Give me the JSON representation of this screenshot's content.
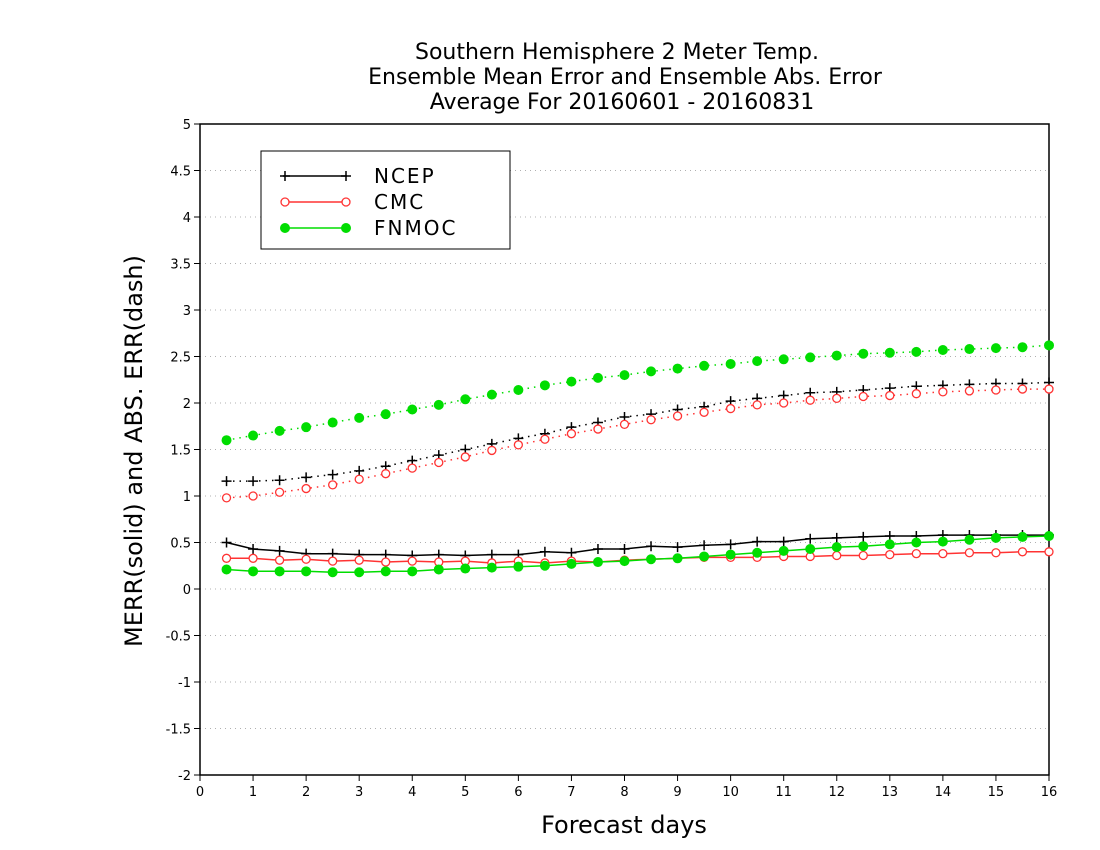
{
  "chart_data": {
    "type": "line",
    "title_lines": [
      "Southern Hemisphere 2 Meter Temp.",
      "Ensemble Mean Error and Ensemble Abs. Error",
      "Average For 20160601 - 20160831"
    ],
    "xlabel": "Forecast days",
    "ylabel": "MERR(solid) and ABS. ERR(dash)",
    "xlim": [
      0,
      16
    ],
    "ylim": [
      -2,
      5
    ],
    "x_ticks": [
      "0",
      "1",
      "2",
      "3",
      "4",
      "5",
      "6",
      "7",
      "8",
      "9",
      "10",
      "11",
      "12",
      "13",
      "14",
      "15",
      "16"
    ],
    "y_ticks": [
      "5",
      "4.5",
      "4",
      "3.5",
      "3",
      "2.5",
      "2",
      "1.5",
      "1",
      "0.5",
      "0",
      "-0.5",
      "-1",
      "-1.5",
      "-2"
    ],
    "grid": true,
    "legend_position": "top-left",
    "x": [
      0.5,
      1,
      1.5,
      2,
      2.5,
      3,
      3.5,
      4,
      4.5,
      5,
      5.5,
      6,
      6.5,
      7,
      7.5,
      8,
      8.5,
      9,
      9.5,
      10,
      10.5,
      11,
      11.5,
      12,
      12.5,
      13,
      13.5,
      14,
      14.5,
      15,
      15.5,
      16
    ],
    "series": [
      {
        "name": "NCEP",
        "color": "#000000",
        "marker": "plus",
        "mean_error": [
          0.5,
          0.43,
          0.41,
          0.38,
          0.38,
          0.37,
          0.37,
          0.36,
          0.37,
          0.36,
          0.37,
          0.37,
          0.4,
          0.39,
          0.43,
          0.43,
          0.46,
          0.45,
          0.47,
          0.48,
          0.51,
          0.51,
          0.54,
          0.55,
          0.56,
          0.57,
          0.57,
          0.58,
          0.58,
          0.58,
          0.58,
          0.58
        ],
        "abs_error": [
          1.16,
          1.16,
          1.17,
          1.2,
          1.23,
          1.27,
          1.32,
          1.38,
          1.44,
          1.5,
          1.56,
          1.62,
          1.67,
          1.74,
          1.79,
          1.85,
          1.88,
          1.93,
          1.96,
          2.02,
          2.05,
          2.08,
          2.11,
          2.12,
          2.14,
          2.16,
          2.18,
          2.19,
          2.2,
          2.21,
          2.21,
          2.22
        ]
      },
      {
        "name": "CMC",
        "color": "#ff3333",
        "marker": "open-circle",
        "mean_error": [
          0.33,
          0.33,
          0.31,
          0.32,
          0.3,
          0.31,
          0.29,
          0.3,
          0.29,
          0.3,
          0.28,
          0.3,
          0.28,
          0.3,
          0.29,
          0.31,
          0.32,
          0.33,
          0.34,
          0.34,
          0.34,
          0.35,
          0.35,
          0.36,
          0.36,
          0.37,
          0.38,
          0.38,
          0.39,
          0.39,
          0.4,
          0.4
        ],
        "abs_error": [
          0.98,
          1.0,
          1.04,
          1.08,
          1.12,
          1.18,
          1.24,
          1.3,
          1.36,
          1.42,
          1.49,
          1.55,
          1.61,
          1.67,
          1.72,
          1.77,
          1.82,
          1.86,
          1.9,
          1.94,
          1.98,
          2.0,
          2.03,
          2.05,
          2.07,
          2.08,
          2.1,
          2.12,
          2.13,
          2.14,
          2.15,
          2.15
        ]
      },
      {
        "name": "FNMOC",
        "color": "#00dd00",
        "marker": "filled-circle",
        "mean_error": [
          0.21,
          0.19,
          0.19,
          0.19,
          0.18,
          0.18,
          0.19,
          0.19,
          0.21,
          0.22,
          0.23,
          0.24,
          0.25,
          0.27,
          0.29,
          0.3,
          0.32,
          0.33,
          0.35,
          0.37,
          0.39,
          0.41,
          0.43,
          0.45,
          0.46,
          0.48,
          0.5,
          0.51,
          0.53,
          0.55,
          0.56,
          0.57
        ],
        "abs_error": [
          1.6,
          1.65,
          1.7,
          1.74,
          1.79,
          1.84,
          1.88,
          1.93,
          1.98,
          2.04,
          2.09,
          2.14,
          2.19,
          2.23,
          2.27,
          2.3,
          2.34,
          2.37,
          2.4,
          2.42,
          2.45,
          2.47,
          2.49,
          2.51,
          2.53,
          2.54,
          2.55,
          2.57,
          2.58,
          2.59,
          2.6,
          2.62
        ]
      }
    ]
  }
}
